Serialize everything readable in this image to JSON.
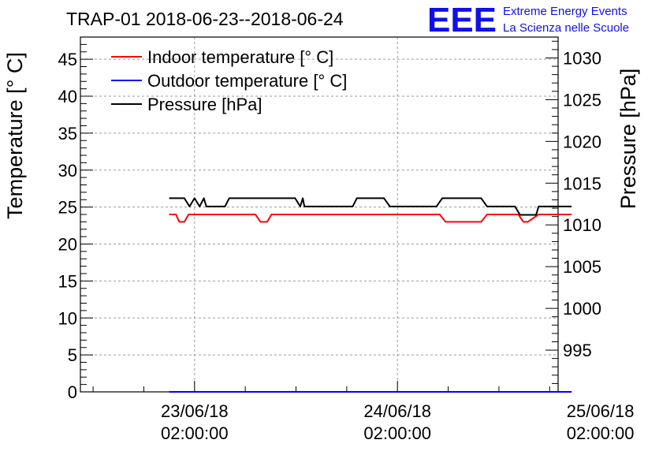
{
  "chart_data": {
    "type": "line",
    "title": "TRAP-01 2018-06-23--2018-06-24",
    "ylabel": "Temperature [° C]",
    "y2label": "Pressure [hPa]",
    "xlabel": "",
    "x_unit": "hours since 23/06/18 02:00:00",
    "xlim": [
      -13.5,
      43
    ],
    "ylim": [
      0,
      48
    ],
    "y2lim": [
      990,
      1032.5
    ],
    "grid": true,
    "legend_position": "top-left",
    "x_ticks": [
      {
        "x": 0,
        "date": "23/06/18",
        "time": "02:00:00"
      },
      {
        "x": 24,
        "date": "24/06/18",
        "time": "02:00:00"
      },
      {
        "x": 48,
        "date": "25/06/18",
        "time": "02:00:00"
      }
    ],
    "y_ticks": [
      0,
      5,
      10,
      15,
      20,
      25,
      30,
      35,
      40,
      45
    ],
    "y2_ticks": [
      995,
      1000,
      1005,
      1010,
      1015,
      1020,
      1025,
      1030
    ],
    "series": [
      {
        "name": "Indoor temperature [° C]",
        "axis": "left",
        "color": "#ff0000",
        "x": [
          -3,
          -2.2,
          -1.8,
          -1.2,
          -0.7,
          7.2,
          7.8,
          8.6,
          9.1,
          18.5,
          19.5,
          20.1,
          23.2,
          24.4,
          29,
          29.7,
          32,
          33.9,
          34.6,
          36.4,
          36.9,
          38.3,
          38.9,
          39.4,
          40.7,
          41.6,
          44.6
        ],
        "y": [
          24,
          24,
          23,
          23,
          24,
          24,
          23,
          23,
          24,
          24,
          24,
          24,
          24,
          24,
          24,
          23,
          23,
          23,
          24,
          24,
          24,
          24,
          23,
          23,
          24,
          24,
          24
        ]
      },
      {
        "name": "Outdoor temperature [° C]",
        "axis": "left",
        "color": "#0000ff",
        "x": [
          -3,
          44.6
        ],
        "y": [
          0,
          0
        ]
      },
      {
        "name": "Pressure [hPa]",
        "axis": "right",
        "color": "#000000",
        "x": [
          -3,
          -1.2,
          -0.6,
          0,
          0.6,
          1.1,
          1.4,
          1.7,
          3.6,
          4.1,
          11.9,
          12.5,
          12.8,
          13,
          13.4,
          18.4,
          18.7,
          19.2,
          22.4,
          23.1,
          28.6,
          29.3,
          33.9,
          34.6,
          37.9,
          38.5,
          39.3,
          40.4,
          40.7,
          44.6
        ],
        "y": [
          1013.2,
          1013.2,
          1012.2,
          1013.2,
          1012.2,
          1013.2,
          1012.2,
          1012.2,
          1012.2,
          1013.2,
          1013.2,
          1012.2,
          1013.2,
          1012.2,
          1012.2,
          1012.2,
          1012.2,
          1013.2,
          1013.2,
          1012.2,
          1012.2,
          1013.2,
          1013.2,
          1012.2,
          1012.2,
          1011.2,
          1011.2,
          1011.2,
          1012.2,
          1012.2
        ]
      }
    ]
  },
  "logo": {
    "text": "EEE",
    "line1": "Extreme Energy Events",
    "line2": "La Scienza nelle Scuole",
    "color": "#1010e8"
  }
}
